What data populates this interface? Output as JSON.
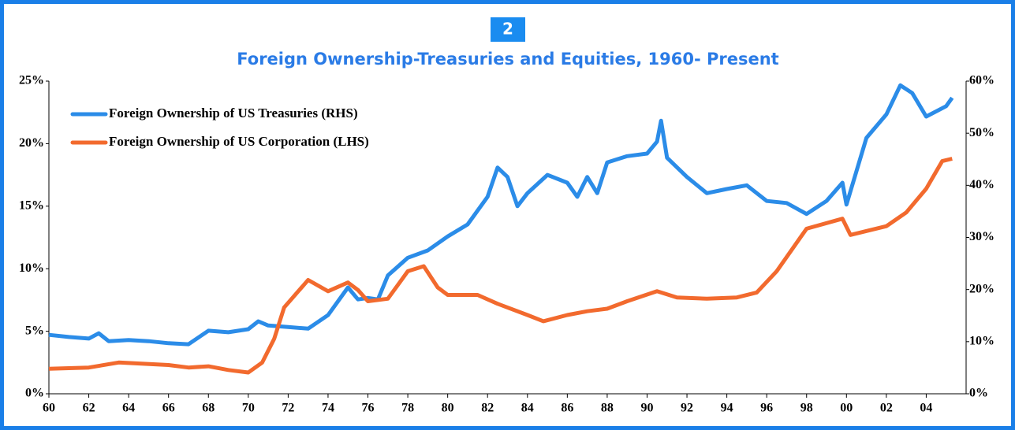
{
  "chart_data": {
    "type": "line",
    "badge": "2",
    "title": "Foreign Ownership-Treasuries and Equities, 1960- Present",
    "xlim": [
      1960,
      2006
    ],
    "xticks": [
      {
        "value": 1960,
        "label": "60"
      },
      {
        "value": 1962,
        "label": "62"
      },
      {
        "value": 1964,
        "label": "64"
      },
      {
        "value": 1966,
        "label": "66"
      },
      {
        "value": 1968,
        "label": "68"
      },
      {
        "value": 1970,
        "label": "70"
      },
      {
        "value": 1972,
        "label": "72"
      },
      {
        "value": 1974,
        "label": "74"
      },
      {
        "value": 1976,
        "label": "76"
      },
      {
        "value": 1978,
        "label": "78"
      },
      {
        "value": 1980,
        "label": "80"
      },
      {
        "value": 1982,
        "label": "82"
      },
      {
        "value": 1984,
        "label": "84"
      },
      {
        "value": 1986,
        "label": "86"
      },
      {
        "value": 1988,
        "label": "88"
      },
      {
        "value": 1990,
        "label": "90"
      },
      {
        "value": 1992,
        "label": "92"
      },
      {
        "value": 1994,
        "label": "94"
      },
      {
        "value": 1996,
        "label": "96"
      },
      {
        "value": 1998,
        "label": "98"
      },
      {
        "value": 2000,
        "label": "00"
      },
      {
        "value": 2002,
        "label": "02"
      },
      {
        "value": 2004,
        "label": "04"
      }
    ],
    "ylim": [
      0,
      25
    ],
    "yticks": [
      {
        "value": 0,
        "label": "0%"
      },
      {
        "value": 5,
        "label": "5%"
      },
      {
        "value": 10,
        "label": "10%"
      },
      {
        "value": 15,
        "label": "15%"
      },
      {
        "value": 20,
        "label": "20%"
      },
      {
        "value": 25,
        "label": "25%"
      }
    ],
    "y2lim": [
      0,
      60
    ],
    "y2ticks": [
      {
        "value": 0,
        "label": "0%"
      },
      {
        "value": 10,
        "label": "10%"
      },
      {
        "value": 20,
        "label": "20%"
      },
      {
        "value": 30,
        "label": "30%"
      },
      {
        "value": 40,
        "label": "40%"
      },
      {
        "value": 50,
        "label": "50%"
      },
      {
        "value": 60,
        "label": "60%"
      }
    ],
    "legend": "upper left",
    "series": [
      {
        "name": "Foreign Ownership of US Treasuries (RHS)",
        "color": "#2b8ce8",
        "axis": "y2",
        "x": [
          1960,
          1961,
          1962,
          1962.5,
          1963,
          1964,
          1965,
          1966,
          1967,
          1968,
          1969,
          1970,
          1970.5,
          1971,
          1972,
          1973,
          1974,
          1975,
          1975.5,
          1976,
          1976.5,
          1977,
          1978,
          1979,
          1980,
          1981,
          1982,
          1982.5,
          1983,
          1983.5,
          1984,
          1985,
          1986,
          1986.5,
          1987,
          1987.5,
          1988,
          1989,
          1990,
          1990.5,
          1990.7,
          1991,
          1992,
          1993,
          1994,
          1995,
          1996,
          1997,
          1998,
          1999,
          1999.8,
          2000,
          2001,
          2002,
          2002.7,
          2003.3,
          2004,
          2005,
          2005.3
        ],
        "values": [
          11.3,
          10.9,
          10.6,
          11.6,
          10.1,
          10.3,
          10.1,
          9.7,
          9.5,
          12.1,
          11.8,
          12.4,
          13.9,
          13.1,
          12.8,
          12.5,
          15.1,
          20.4,
          18.1,
          18.4,
          18.1,
          22.7,
          26.1,
          27.5,
          30.2,
          32.5,
          37.8,
          43.4,
          41.6,
          36,
          38.5,
          42,
          40.5,
          37.8,
          41.6,
          38.5,
          44.4,
          45.6,
          46.1,
          48.4,
          52.4,
          45.3,
          41.6,
          38.5,
          39.3,
          40,
          37,
          36.6,
          34.5,
          37,
          40.5,
          36.3,
          49.1,
          53.6,
          59.2,
          57.7,
          53.2,
          55.2,
          56.8
        ]
      },
      {
        "name": "Foreign Ownership of US Corporation (LHS)",
        "color": "#f26a2e",
        "axis": "y",
        "x": [
          1960,
          1962,
          1963.5,
          1966,
          1967,
          1968,
          1969,
          1970,
          1970.7,
          1971.3,
          1971.8,
          1973,
          1974,
          1975,
          1975.5,
          1976,
          1977,
          1978,
          1978.8,
          1979.5,
          1980,
          1981.5,
          1982.5,
          1984,
          1984.8,
          1986,
          1987,
          1988,
          1989,
          1990.5,
          1991.5,
          1993,
          1994.5,
          1995.5,
          1996.5,
          1998,
          1999.8,
          2000.2,
          2002,
          2003,
          2004,
          2004.8,
          2005.3
        ],
        "values": [
          2.0,
          2.1,
          2.5,
          2.3,
          2.1,
          2.2,
          1.9,
          1.7,
          2.5,
          4.4,
          6.9,
          9.1,
          8.2,
          8.9,
          8.3,
          7.4,
          7.6,
          9.8,
          10.2,
          8.5,
          7.9,
          7.9,
          7.2,
          6.3,
          5.8,
          6.3,
          6.6,
          6.8,
          7.4,
          8.2,
          7.7,
          7.6,
          7.7,
          8.1,
          9.8,
          13.2,
          14.0,
          12.7,
          13.4,
          14.5,
          16.4,
          18.6,
          18.8
        ]
      }
    ]
  }
}
